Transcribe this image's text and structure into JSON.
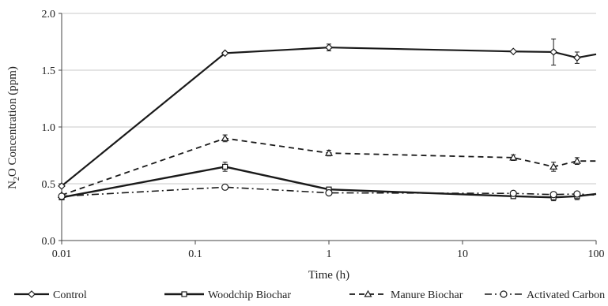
{
  "chart_data": {
    "type": "line",
    "xlabel": "Time (h)",
    "ylabel": "N2O Concentration (ppm)",
    "ylabel_parts": {
      "pre": "N",
      "sub": "2",
      "post": "O Concentration (ppm)"
    },
    "x_scale": "log",
    "xlim": [
      0.01,
      100
    ],
    "ylim": [
      0,
      2.0
    ],
    "x_ticks": [
      {
        "value": 0.01,
        "label": "0.01"
      },
      {
        "value": 0.1,
        "label": "0.1"
      },
      {
        "value": 1,
        "label": "1"
      },
      {
        "value": 10,
        "label": "10"
      },
      {
        "value": 100,
        "label": "100"
      }
    ],
    "y_ticks": [
      {
        "value": 0,
        "label": "0.0"
      },
      {
        "value": 0.5,
        "label": "0.5"
      },
      {
        "value": 1.0,
        "label": "1.0"
      },
      {
        "value": 1.5,
        "label": "1.5"
      },
      {
        "value": 2.0,
        "label": "2.0"
      }
    ],
    "grid": "horizontal",
    "legend_position": "bottom",
    "series": [
      {
        "name": "Control",
        "marker": "diamond",
        "dash": "solid",
        "stroke_width": 2.2,
        "x": [
          0.01,
          0.167,
          1,
          24,
          48,
          72,
          100
        ],
        "y": [
          0.48,
          1.65,
          1.7,
          1.665,
          1.66,
          1.61,
          1.64
        ],
        "err": [
          0,
          0,
          0.03,
          0,
          0.115,
          0.05,
          0
        ]
      },
      {
        "name": "Woodchip Biochar",
        "marker": "square",
        "dash": "solid",
        "stroke_width": 2.4,
        "x": [
          0.01,
          0.167,
          1,
          24,
          48,
          72,
          100
        ],
        "y": [
          0.38,
          0.65,
          0.45,
          0.39,
          0.38,
          0.39,
          0.41
        ],
        "err": [
          0,
          0.04,
          0.02,
          0.02,
          0.03,
          0.03,
          0
        ]
      },
      {
        "name": "Manure Biochar",
        "marker": "triangle",
        "dash": "dashed",
        "stroke_width": 1.8,
        "x": [
          0.01,
          0.167,
          1,
          24,
          48,
          72,
          100
        ],
        "y": [
          0.4,
          0.9,
          0.77,
          0.73,
          0.65,
          0.7,
          0.7
        ],
        "err": [
          0,
          0.03,
          0.025,
          0.025,
          0.04,
          0.03,
          0
        ]
      },
      {
        "name": "Activated Carbon",
        "marker": "circle",
        "dash": "dashdot",
        "stroke_width": 1.6,
        "x": [
          0.01,
          0.167,
          1,
          24,
          48,
          72,
          100
        ],
        "y": [
          0.39,
          0.47,
          0.42,
          0.415,
          0.405,
          0.41,
          0.4
        ],
        "err": [
          0,
          0,
          0,
          0,
          0.02,
          0,
          0
        ]
      }
    ]
  }
}
